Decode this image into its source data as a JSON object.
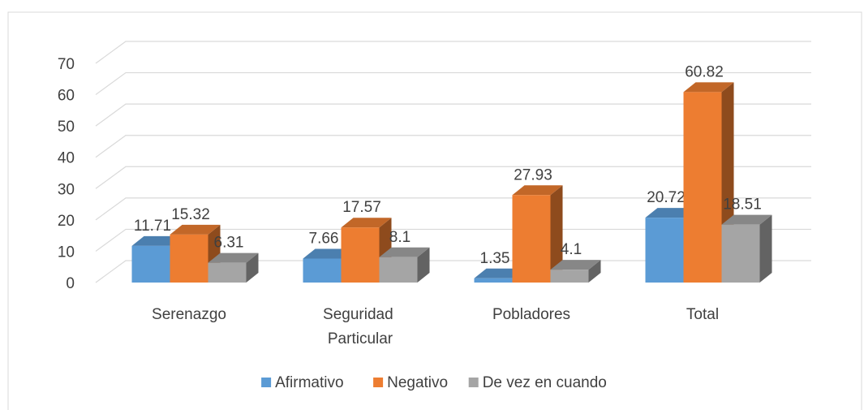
{
  "chart_data": {
    "type": "bar3d",
    "categories": [
      "Serenazgo",
      "Seguridad Particular",
      "Pobladores",
      "Total"
    ],
    "series": [
      {
        "name": "Afirmativo",
        "color": "#5b9bd5",
        "values": [
          11.71,
          7.66,
          1.35,
          20.72
        ]
      },
      {
        "name": "Negativo",
        "color": "#ed7d31",
        "values": [
          15.32,
          17.57,
          27.93,
          60.82
        ]
      },
      {
        "name": "De vez en cuando",
        "color": "#a5a5a5",
        "values": [
          6.31,
          8.1,
          4.1,
          18.51
        ]
      }
    ],
    "ylim": [
      0,
      70
    ],
    "yticks": [
      0,
      10,
      20,
      30,
      40,
      50,
      60,
      70
    ],
    "grid": true,
    "legend": "bottom"
  }
}
